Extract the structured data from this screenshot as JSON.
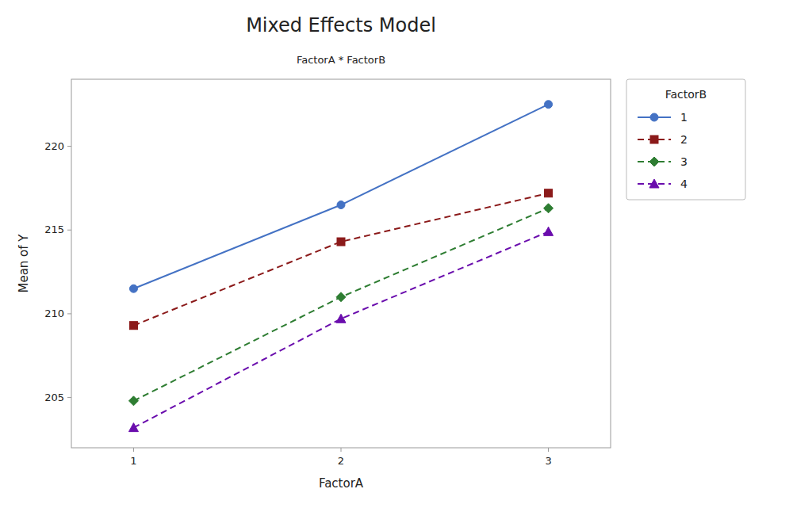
{
  "chart_data": {
    "type": "line",
    "title": "Mixed Effects Model",
    "subtitle": "FactorA * FactorB",
    "x_label": "FactorA",
    "y_label": "Mean of Y",
    "legend_title": "FactorB",
    "x": [
      1,
      2,
      3
    ],
    "series": [
      {
        "name": "1",
        "color": "#4472c4",
        "values": [
          211.5,
          216.5,
          222.5
        ],
        "marker": "circle",
        "line_style": "solid"
      },
      {
        "name": "2",
        "color": "#8b1a1a",
        "values": [
          209.3,
          214.3,
          217.2
        ],
        "marker": "square",
        "line_style": "dashed"
      },
      {
        "name": "3",
        "color": "#2e7d32",
        "values": [
          204.8,
          211.0,
          216.3
        ],
        "marker": "diamond",
        "line_style": "dashed"
      },
      {
        "name": "4",
        "color": "#6a0dad",
        "values": [
          203.2,
          209.7,
          214.9
        ],
        "marker": "triangle",
        "line_style": "dashed"
      }
    ],
    "xlim": [
      0.7,
      3.3
    ],
    "xticks": [
      1,
      2,
      3
    ],
    "ylim": [
      202,
      224
    ],
    "yticks": [
      205,
      210,
      215,
      220
    ],
    "grid": false,
    "legend": "right"
  }
}
